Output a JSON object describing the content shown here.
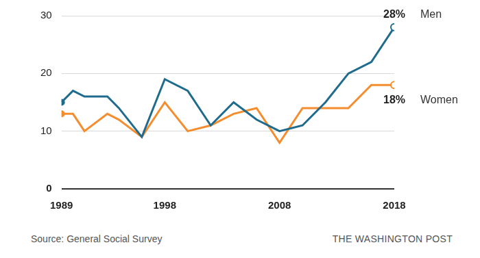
{
  "chart_data": {
    "type": "line",
    "x": [
      1989,
      1990,
      1991,
      1993,
      1994,
      1996,
      1998,
      2000,
      2002,
      2004,
      2006,
      2008,
      2010,
      2012,
      2014,
      2016,
      2018
    ],
    "series": [
      {
        "name": "Men",
        "color": "#1f6b8d",
        "values": [
          15,
          17,
          16,
          16,
          14,
          9,
          19,
          17,
          11,
          15,
          12,
          10,
          11,
          15,
          20,
          22,
          28
        ],
        "value_labels": [
          null,
          null,
          null,
          null,
          null,
          null,
          null,
          null,
          null,
          null,
          null,
          null,
          null,
          null,
          null,
          null,
          "28%"
        ]
      },
      {
        "name": "Women",
        "color": "#f58d2e",
        "values": [
          13,
          13,
          10,
          13,
          12,
          9,
          15,
          10,
          11,
          13,
          14,
          8,
          14,
          14,
          14,
          18,
          18
        ],
        "value_labels": [
          null,
          null,
          null,
          null,
          null,
          null,
          null,
          null,
          null,
          null,
          null,
          null,
          null,
          null,
          null,
          null,
          "18%"
        ]
      }
    ],
    "xlim": [
      1989,
      2018
    ],
    "xticks": [
      1989,
      1998,
      2008,
      2018
    ],
    "ylim": [
      0,
      30
    ],
    "yticks": [
      0,
      10,
      20,
      30
    ],
    "grid": true,
    "source": "Source: General Social Survey",
    "credit": "THE WASHINGTON POST"
  }
}
